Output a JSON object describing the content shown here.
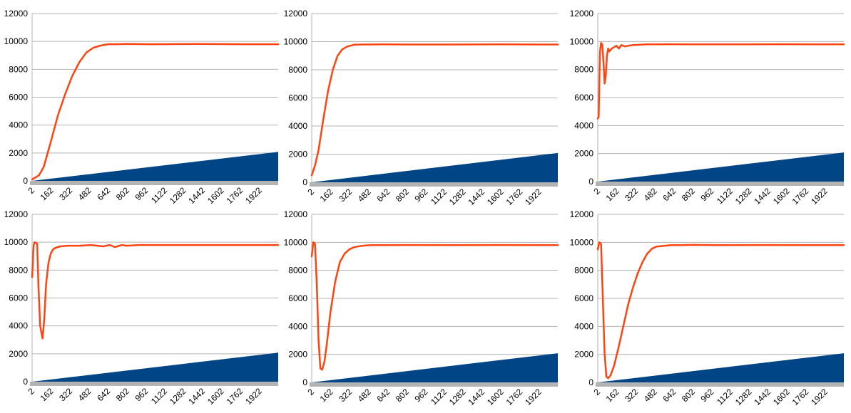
{
  "colors": {
    "line": "#ff4411",
    "area": "#004586",
    "grid": "#b3b3b3",
    "axis_base": "#b3b3b3"
  },
  "chart_data": [
    {
      "type": "line+area",
      "title": "",
      "ylim": [
        0,
        12000
      ],
      "yticks": [
        "0",
        "2000",
        "4000",
        "6000",
        "8000",
        "10000",
        "12000"
      ],
      "xlim": [
        2,
        2080
      ],
      "xticks": [
        "2",
        "162",
        "322",
        "482",
        "642",
        "802",
        "962",
        "1122",
        "1282",
        "1442",
        "1602",
        "1762",
        "1922"
      ],
      "grid": true,
      "legend": "none",
      "series": [
        {
          "kind": "line",
          "x": [
            2,
            60,
            100,
            160,
            220,
            280,
            340,
            400,
            460,
            520,
            580,
            640,
            700,
            800,
            1000,
            1400,
            1800,
            2080
          ],
          "values": [
            100,
            400,
            1000,
            2800,
            4700,
            6200,
            7500,
            8500,
            9200,
            9550,
            9700,
            9800,
            9800,
            9820,
            9800,
            9820,
            9800,
            9800
          ]
        },
        {
          "kind": "area",
          "x": [
            2,
            2080
          ],
          "values": [
            0,
            2080
          ]
        }
      ]
    },
    {
      "type": "line+area",
      "title": "",
      "ylim": [
        0,
        12000
      ],
      "yticks": [
        "0",
        "2000",
        "4000",
        "6000",
        "8000",
        "10000",
        "12000"
      ],
      "xlim": [
        2,
        2080
      ],
      "xticks": [
        "2",
        "162",
        "322",
        "482",
        "642",
        "802",
        "962",
        "1122",
        "1282",
        "1442",
        "1602",
        "1762",
        "1922"
      ],
      "grid": true,
      "legend": "none",
      "series": [
        {
          "kind": "line",
          "x": [
            2,
            30,
            60,
            100,
            140,
            180,
            220,
            260,
            300,
            360,
            420,
            500,
            600,
            800,
            1200,
            1600,
            2080
          ],
          "values": [
            500,
            1200,
            2300,
            4500,
            6500,
            8000,
            9000,
            9450,
            9650,
            9780,
            9800,
            9800,
            9810,
            9800,
            9800,
            9810,
            9800
          ]
        },
        {
          "kind": "area",
          "x": [
            2,
            2080
          ],
          "values": [
            0,
            2080
          ]
        }
      ]
    },
    {
      "type": "line+area",
      "title": "",
      "ylim": [
        0,
        12000
      ],
      "yticks": [
        "0",
        "2000",
        "4000",
        "6000",
        "8000",
        "10000",
        "12000"
      ],
      "xlim": [
        2,
        2080
      ],
      "xticks": [
        "2",
        "162",
        "322",
        "482",
        "642",
        "802",
        "962",
        "1122",
        "1282",
        "1442",
        "1602",
        "1762",
        "1922"
      ],
      "grid": true,
      "legend": "none",
      "series": [
        {
          "kind": "line",
          "x": [
            2,
            10,
            20,
            30,
            40,
            50,
            60,
            70,
            80,
            90,
            100,
            120,
            140,
            160,
            180,
            200,
            230,
            260,
            300,
            360,
            420,
            500,
            600,
            800,
            1200,
            1600,
            2080
          ],
          "values": [
            4500,
            4600,
            9200,
            9900,
            9800,
            8500,
            7000,
            7600,
            9000,
            9500,
            9300,
            9500,
            9600,
            9700,
            9500,
            9750,
            9650,
            9700,
            9750,
            9780,
            9800,
            9800,
            9810,
            9800,
            9800,
            9810,
            9800
          ]
        },
        {
          "kind": "area",
          "x": [
            2,
            2080
          ],
          "values": [
            0,
            2080
          ]
        }
      ]
    },
    {
      "type": "line+area",
      "title": "",
      "ylim": [
        0,
        12000
      ],
      "yticks": [
        "0",
        "2000",
        "4000",
        "6000",
        "8000",
        "10000",
        "12000"
      ],
      "xlim": [
        2,
        2080
      ],
      "xticks": [
        "2",
        "162",
        "322",
        "482",
        "642",
        "802",
        "962",
        "1122",
        "1282",
        "1442",
        "1602",
        "1762",
        "1922"
      ],
      "grid": true,
      "legend": "none",
      "series": [
        {
          "kind": "line",
          "x": [
            2,
            15,
            25,
            45,
            55,
            70,
            90,
            105,
            120,
            140,
            160,
            180,
            200,
            240,
            300,
            400,
            500,
            600,
            660,
            700,
            760,
            800,
            900,
            1100,
            1400,
            1800,
            2080
          ],
          "values": [
            7500,
            9800,
            10000,
            9900,
            7000,
            4000,
            3100,
            4500,
            7000,
            8500,
            9200,
            9500,
            9600,
            9700,
            9750,
            9750,
            9800,
            9700,
            9800,
            9650,
            9800,
            9750,
            9800,
            9800,
            9800,
            9800,
            9800
          ]
        },
        {
          "kind": "area",
          "x": [
            2,
            2080
          ],
          "values": [
            0,
            2080
          ]
        }
      ]
    },
    {
      "type": "line+area",
      "title": "",
      "ylim": [
        0,
        12000
      ],
      "yticks": [
        "0",
        "2000",
        "4000",
        "6000",
        "8000",
        "10000",
        "12000"
      ],
      "xlim": [
        2,
        2080
      ],
      "xticks": [
        "2",
        "162",
        "322",
        "482",
        "642",
        "802",
        "962",
        "1122",
        "1282",
        "1442",
        "1602",
        "1762",
        "1922"
      ],
      "grid": true,
      "legend": "none",
      "series": [
        {
          "kind": "line",
          "x": [
            2,
            15,
            30,
            45,
            60,
            75,
            90,
            110,
            130,
            160,
            200,
            240,
            280,
            320,
            360,
            420,
            500,
            600,
            800,
            1200,
            1600,
            2080
          ],
          "values": [
            9000,
            10000,
            9900,
            7000,
            3000,
            1000,
            900,
            1500,
            2800,
            5000,
            7200,
            8600,
            9200,
            9500,
            9650,
            9750,
            9800,
            9800,
            9810,
            9800,
            9810,
            9800
          ]
        },
        {
          "kind": "area",
          "x": [
            2,
            2080
          ],
          "values": [
            0,
            2080
          ]
        }
      ]
    },
    {
      "type": "line+area",
      "title": "",
      "ylim": [
        0,
        12000
      ],
      "yticks": [
        "0",
        "2000",
        "4000",
        "6000",
        "8000",
        "10000",
        "12000"
      ],
      "xlim": [
        2,
        2080
      ],
      "xticks": [
        "2",
        "162",
        "322",
        "482",
        "642",
        "802",
        "962",
        "1122",
        "1282",
        "1442",
        "1602",
        "1762",
        "1922"
      ],
      "grid": true,
      "legend": "none",
      "series": [
        {
          "kind": "line",
          "x": [
            2,
            15,
            30,
            45,
            60,
            75,
            90,
            110,
            140,
            180,
            220,
            260,
            300,
            340,
            380,
            420,
            460,
            500,
            560,
            620,
            700,
            800,
            1000,
            1400,
            1800,
            2080
          ],
          "values": [
            9500,
            10000,
            9900,
            6000,
            2000,
            400,
            300,
            500,
            1200,
            2600,
            4100,
            5600,
            6800,
            7800,
            8600,
            9200,
            9550,
            9700,
            9750,
            9800,
            9800,
            9820,
            9800,
            9810,
            9800,
            9800
          ]
        },
        {
          "kind": "area",
          "x": [
            2,
            2080
          ],
          "values": [
            0,
            2080
          ]
        }
      ]
    }
  ]
}
